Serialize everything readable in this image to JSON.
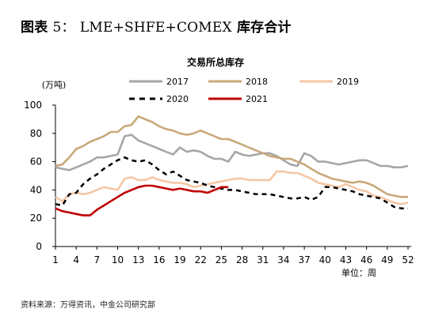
{
  "figure": {
    "label": "图表",
    "number": "5：",
    "name": "LME+SHFE+COMEX",
    "suffix": "库存合计",
    "source": "资料来源：万得资讯，中金公司研究部"
  },
  "chart_data": {
    "type": "line",
    "title": "交易所总库存",
    "ylabel": "(万吨)",
    "xlabel": "单位：周",
    "ylim": [
      0,
      100
    ],
    "yticks": [
      0,
      20,
      40,
      60,
      80,
      100
    ],
    "xlim": [
      1,
      52
    ],
    "xticks": [
      1,
      4,
      7,
      10,
      13,
      16,
      19,
      22,
      25,
      28,
      31,
      34,
      37,
      40,
      43,
      46,
      49,
      52
    ],
    "legend_position": "top",
    "grid": false,
    "series": [
      {
        "name": "2017",
        "color": "#a6a6a6",
        "dash": false,
        "values": [
          56,
          55,
          54,
          56,
          58,
          60,
          63,
          63,
          64,
          65,
          78,
          79,
          75,
          73,
          71,
          69,
          67,
          65,
          70,
          67,
          68,
          67,
          64,
          62,
          62,
          60,
          67,
          65,
          64,
          65,
          66,
          66,
          64,
          61,
          58,
          57,
          66,
          64,
          60,
          60,
          59,
          58,
          59,
          60,
          61,
          61,
          59,
          57,
          57,
          56,
          56,
          57
        ]
      },
      {
        "name": "2018",
        "color": "#c8a97a",
        "dash": false,
        "values": [
          57,
          58,
          63,
          69,
          71,
          74,
          76,
          78,
          81,
          81,
          85,
          86,
          92,
          90,
          88,
          85,
          83,
          82,
          80,
          79,
          80,
          82,
          80,
          78,
          76,
          76,
          74,
          72,
          70,
          68,
          66,
          64,
          63,
          62,
          62,
          60,
          58,
          55,
          52,
          50,
          48,
          47,
          46,
          45,
          46,
          45,
          43,
          40,
          37,
          36,
          35,
          35
        ]
      },
      {
        "name": "2019",
        "color": "#f5c7a5",
        "dash": false,
        "values": [
          35,
          32,
          37,
          38,
          37,
          38,
          40,
          42,
          41,
          40,
          48,
          49,
          47,
          47,
          49,
          47,
          46,
          45,
          45,
          44,
          42,
          43,
          44,
          45,
          46,
          47,
          48,
          48,
          47,
          47,
          47,
          47,
          53,
          53,
          52,
          52,
          50,
          48,
          45,
          44,
          43,
          42,
          44,
          42,
          40,
          39,
          36,
          35,
          33,
          31,
          30,
          31
        ]
      },
      {
        "name": "2020",
        "color": "#000000",
        "dash": true,
        "values": [
          30,
          29,
          37,
          38,
          44,
          48,
          51,
          55,
          58,
          61,
          63,
          61,
          60,
          61,
          58,
          54,
          51,
          53,
          50,
          47,
          46,
          45,
          43,
          42,
          41,
          40,
          40,
          39,
          38,
          37,
          37,
          37,
          36,
          35,
          34,
          34,
          35,
          33,
          35,
          42,
          42,
          41,
          40,
          39,
          37,
          36,
          35,
          34,
          31,
          28,
          27,
          27
        ]
      },
      {
        "name": "2021",
        "color": "#c00000",
        "dash": false,
        "values": [
          27,
          25,
          24,
          23,
          22,
          22,
          26,
          29,
          32,
          35,
          38,
          40,
          42,
          43,
          43,
          42,
          41,
          40,
          41,
          40,
          39,
          39,
          38,
          40,
          42,
          42
        ]
      }
    ]
  }
}
